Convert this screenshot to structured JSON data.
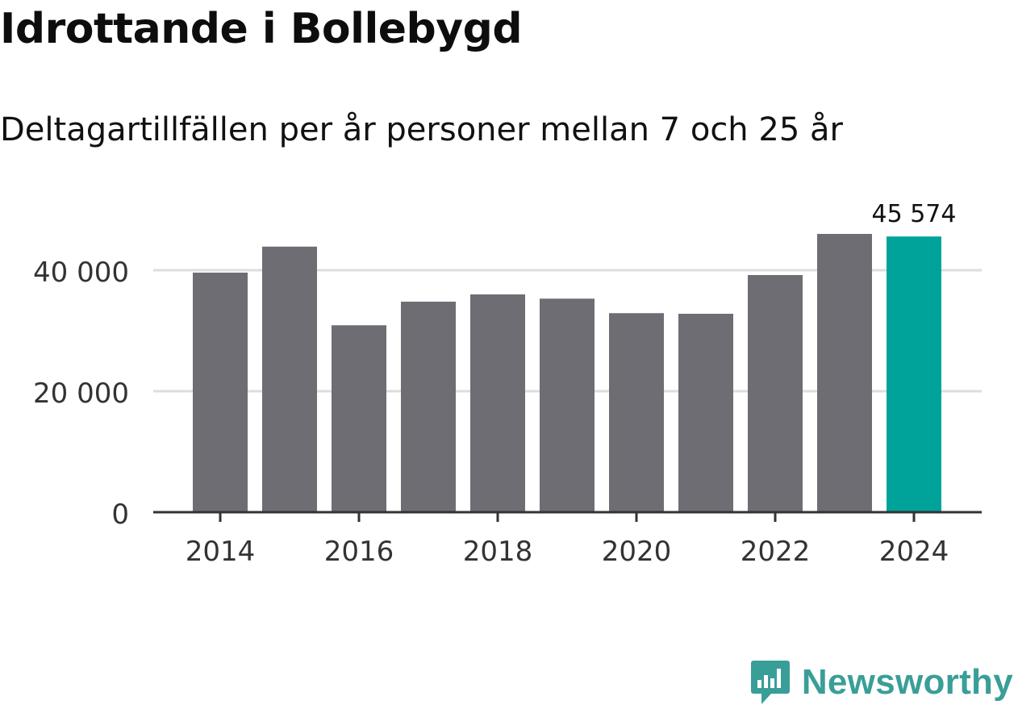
{
  "header": {
    "title": "Idrottande i Bollebygd",
    "subtitle": "Deltagartillfällen per år personer mellan 7 och 25 år"
  },
  "chart_data": {
    "type": "bar",
    "title": "Idrottande i Bollebygd",
    "subtitle": "Deltagartillfällen per år personer mellan 7 och 25 år",
    "xlabel": "",
    "ylabel": "",
    "categories": [
      "2014",
      "2015",
      "2016",
      "2017",
      "2018",
      "2019",
      "2020",
      "2021",
      "2022",
      "2023",
      "2024"
    ],
    "values": [
      39600,
      43900,
      30900,
      34800,
      36000,
      35300,
      32900,
      32800,
      39200,
      46000,
      45574
    ],
    "ylim": [
      0,
      50000
    ],
    "yticks": [
      0,
      20000,
      40000
    ],
    "ytick_labels": [
      "0",
      "20 000",
      "40 000"
    ],
    "xtick_labels": [
      "2014",
      "2016",
      "2018",
      "2020",
      "2022",
      "2024"
    ],
    "highlight_index": 10,
    "highlight_label": "45 574",
    "bar_color": "#6e6d73",
    "highlight_color": "#00a39a",
    "grid": true
  },
  "branding": {
    "name": "Newsworthy",
    "color": "#3a9e98",
    "icon": "newsworthy-logo-icon"
  }
}
